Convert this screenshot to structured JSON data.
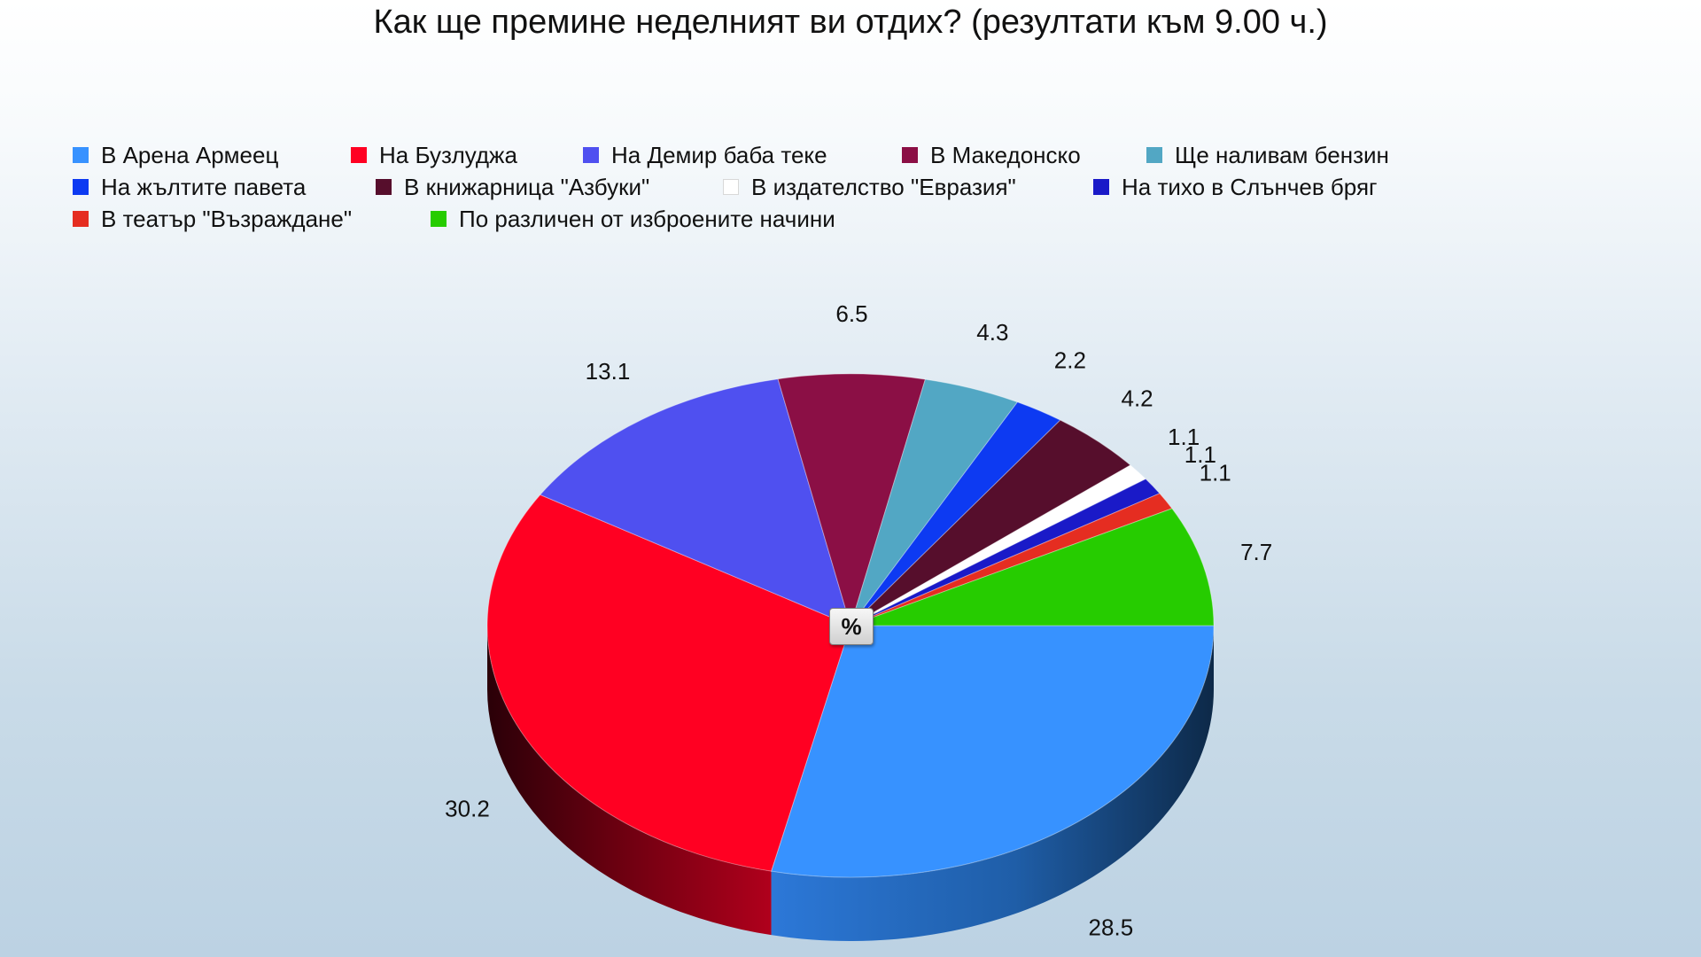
{
  "chart_data": {
    "type": "pie",
    "title": "Как ще премине неделният ви отдих? (резултати към 9.00 ч.)",
    "unit_label": "%",
    "legend_position": "top",
    "slices": [
      {
        "label": "В Арена Армеец",
        "value": 28.5,
        "value_text": "28.5",
        "color": "#3792ff"
      },
      {
        "label": "На Бузлуджа",
        "value": 30.2,
        "value_text": "30.2",
        "color": "#ff0022"
      },
      {
        "label": "На Демир баба теке",
        "value": 13.1,
        "value_text": "13.1",
        "color": "#4f50f0"
      },
      {
        "label": "В Македонско",
        "value": 6.5,
        "value_text": "6.5",
        "color": "#8b0f45"
      },
      {
        "label": "Ще наливам бензин",
        "value": 4.3,
        "value_text": "4.3",
        "color": "#52a7c4"
      },
      {
        "label": "На жълтите павета",
        "value": 2.2,
        "value_text": "2.2",
        "color": "#0d3af2"
      },
      {
        "label": "В книжарница \"Азбуки\"",
        "value": 4.2,
        "value_text": "4.2",
        "color": "#560e2c"
      },
      {
        "label": "В издателство \"Евразия\"",
        "value": 1.1,
        "value_text": "1.1",
        "color": "#ffffff"
      },
      {
        "label": "На тихо в Слънчев бряг",
        "value": 1.1,
        "value_text": "1.1",
        "color": "#1a1ac8"
      },
      {
        "label": "В театър \"Възраждане\"",
        "value": 1.1,
        "value_text": "1.1",
        "color": "#e52d21"
      },
      {
        "label": "По различен от изброените начини",
        "value": 7.7,
        "value_text": "7.7",
        "color": "#26cc00"
      }
    ]
  }
}
